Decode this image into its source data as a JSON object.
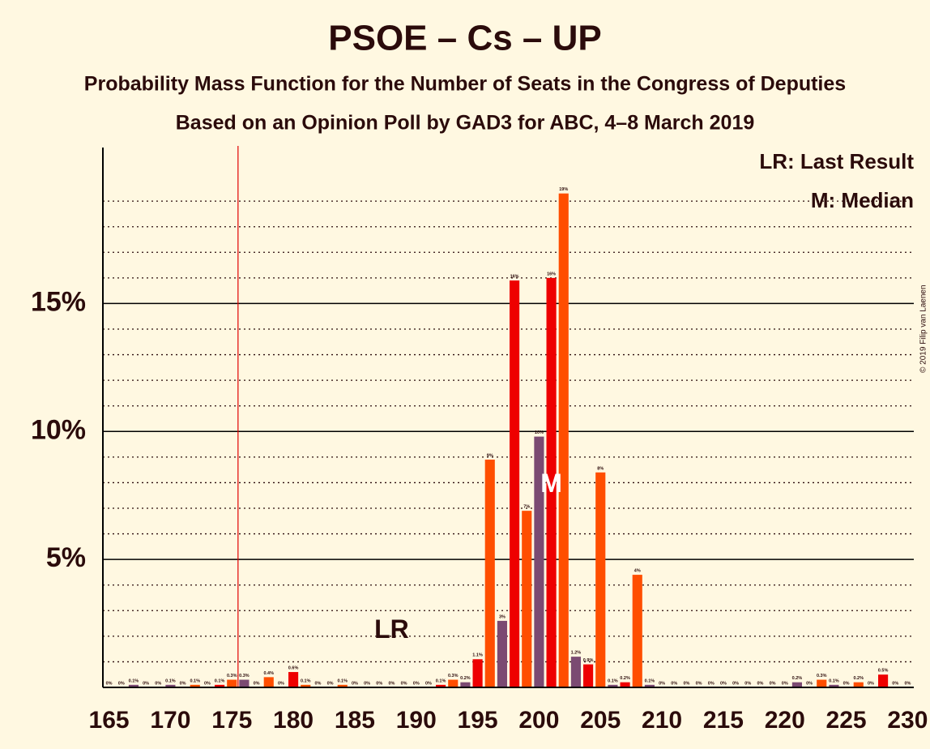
{
  "chart_data": {
    "type": "bar",
    "title": "PSOE – Cs – UP",
    "subtitle": "Probability Mass Function for the Number of Seats in the Congress of Deputies",
    "subtitle2": "Based on an Opinion Poll by GAD3 for ABC, 4–8 March 2019",
    "copyright": "© 2019 Filip van Laenen",
    "legend": [
      "LR: Last Result",
      "M: Median"
    ],
    "x": [
      165,
      166,
      167,
      168,
      169,
      170,
      171,
      172,
      173,
      174,
      175,
      176,
      177,
      178,
      179,
      180,
      181,
      182,
      183,
      184,
      185,
      186,
      187,
      188,
      189,
      190,
      191,
      192,
      193,
      194,
      195,
      196,
      197,
      198,
      199,
      200,
      201,
      202,
      203,
      204,
      205,
      206,
      207,
      208,
      209,
      210,
      211,
      212,
      213,
      214,
      215,
      216,
      217,
      218,
      219,
      220,
      221,
      222,
      223,
      224,
      225,
      226,
      227,
      228,
      229,
      230
    ],
    "values": [
      0,
      0,
      0.1,
      0,
      0,
      0.1,
      0,
      0.1,
      0,
      0.1,
      0.3,
      0.3,
      0,
      0.4,
      0,
      0.6,
      0.1,
      0,
      0,
      0.1,
      0,
      0,
      0,
      0,
      0,
      0,
      0,
      0.1,
      0.3,
      0.2,
      1.1,
      8.9,
      2.6,
      15.9,
      6.9,
      9.8,
      16.0,
      19.3,
      1.2,
      0.9,
      8.4,
      0.1,
      0.2,
      4.4,
      0.1,
      0,
      0,
      0,
      0,
      0,
      0,
      0,
      0,
      0,
      0,
      0,
      0.2,
      0,
      0.3,
      0.1,
      0,
      0.2,
      0,
      0.5,
      0,
      0
    ],
    "value_labels": [
      "0%",
      "0%",
      "0.1%",
      "0%",
      "0%",
      "0.1%",
      "0%",
      "0.1%",
      "0%",
      "0.1%",
      "0.3%",
      "0.3%",
      "0%",
      "0.4%",
      "0%",
      "0.6%",
      "0.1%",
      "0%",
      "0%",
      "0.1%",
      "0%",
      "0%",
      "0%",
      "0%",
      "0%",
      "0%",
      "0%",
      "0.1%",
      "0.3%",
      "0.2%",
      "1.1%",
      "9%",
      "3%",
      "16%",
      "7%",
      "10%",
      "16%",
      "19%",
      "1.2%",
      "0.9%",
      "8%",
      "0.1%",
      "0.2%",
      "4%",
      "0.1%",
      "0%",
      "0%",
      "0%",
      "0%",
      "0%",
      "0%",
      "0%",
      "0%",
      "0%",
      "0%",
      "0%",
      "0.2%",
      "0%",
      "0.3%",
      "0.1%",
      "0%",
      "0.2%",
      "0%",
      "0.5%",
      "0%",
      "0%"
    ],
    "colors": [
      "#ee0000",
      "#ff4e00",
      "#7b4a72",
      "#ee0000",
      "#ff4e00",
      "#7b4a72",
      "#ee0000",
      "#ff4e00",
      "#7b4a72",
      "#ee0000",
      "#ff4e00",
      "#7b4a72",
      "#ee0000",
      "#ff4e00",
      "#7b4a72",
      "#ee0000",
      "#ff4e00",
      "#7b4a72",
      "#ee0000",
      "#ff4e00",
      "#7b4a72",
      "#ee0000",
      "#ff4e00",
      "#7b4a72",
      "#ee0000",
      "#ff4e00",
      "#7b4a72",
      "#ee0000",
      "#ff4e00",
      "#7b4a72",
      "#ee0000",
      "#ff4e00",
      "#7b4a72",
      "#ee0000",
      "#ff4e00",
      "#7b4a72",
      "#ee0000",
      "#ff4e00",
      "#7b4a72",
      "#ee0000",
      "#ff4e00",
      "#7b4a72",
      "#ee0000",
      "#ff4e00",
      "#7b4a72",
      "#ee0000",
      "#ff4e00",
      "#7b4a72",
      "#ee0000",
      "#ff4e00",
      "#7b4a72",
      "#ee0000",
      "#ff4e00",
      "#7b4a72",
      "#ee0000",
      "#ff4e00",
      "#7b4a72",
      "#ee0000",
      "#ff4e00",
      "#7b4a72",
      "#ee0000",
      "#ff4e00",
      "#7b4a72",
      "#ee0000",
      "#ff4e00",
      "#7b4a72"
    ],
    "xlim": [
      164.5,
      230.5
    ],
    "xticks": [
      165,
      170,
      175,
      180,
      185,
      190,
      195,
      200,
      205,
      210,
      215,
      220,
      225,
      230
    ],
    "ylim": [
      0,
      21
    ],
    "yticks": [
      {
        "value": 5,
        "label": "5%"
      },
      {
        "value": 10,
        "label": "10%"
      },
      {
        "value": 15,
        "label": "15%"
      }
    ],
    "minor_yticks": [
      1,
      2,
      3,
      4,
      6,
      7,
      8,
      9,
      11,
      12,
      13,
      14,
      16,
      17,
      18,
      19
    ],
    "majority_line": {
      "x": 175.5,
      "color": "#e00000"
    },
    "annotations": [
      {
        "text": "LR",
        "x": 188,
        "y": 2.2,
        "color": "#2b0b0b"
      },
      {
        "text": "M",
        "x": 201,
        "y": 7.9,
        "color": "#ffffff"
      }
    ]
  }
}
